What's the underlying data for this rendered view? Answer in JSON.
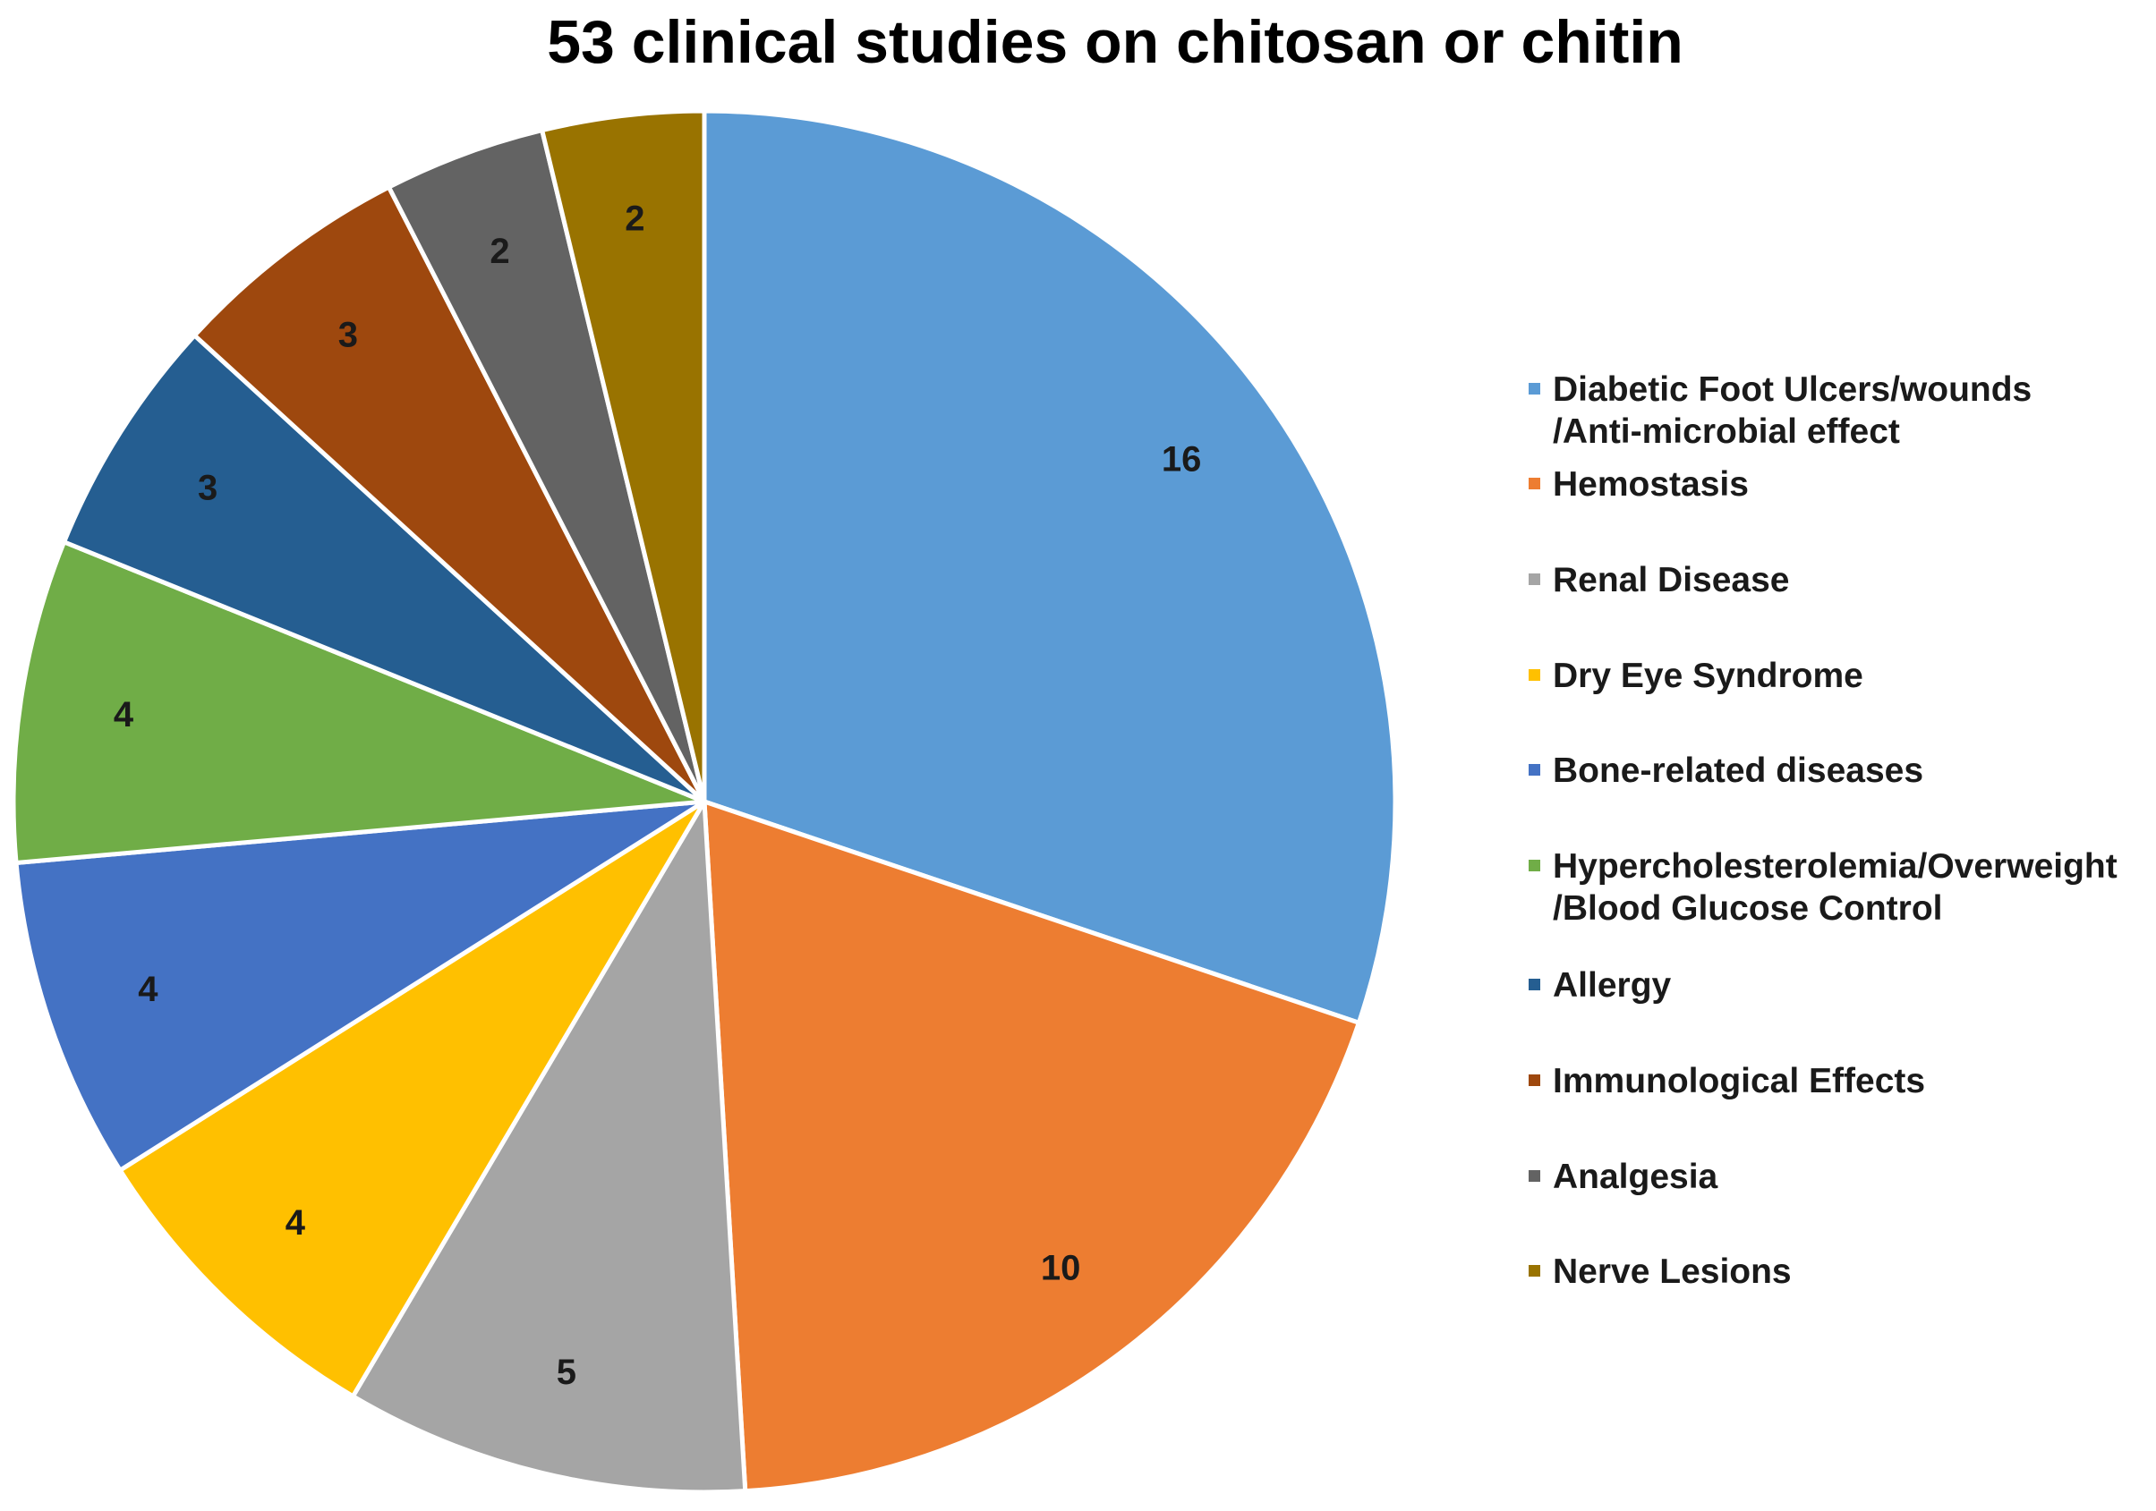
{
  "chart_data": {
    "type": "pie",
    "title": "53 clinical studies on chitosan or chitin",
    "slices": [
      {
        "label": "Diabetic Foot Ulcers/wounds\n/Anti-microbial effect",
        "value": 16,
        "color": "#5B9BD5"
      },
      {
        "label": "Hemostasis",
        "value": 10,
        "color": "#ED7D31"
      },
      {
        "label": " Renal Disease",
        "value": 5,
        "color": "#A5A5A5"
      },
      {
        "label": "Dry Eye Syndrome",
        "value": 4,
        "color": "#FFC000"
      },
      {
        "label": "Bone-related diseases",
        "value": 4,
        "color": "#4472C4"
      },
      {
        "label": "Hypercholesterolemia/Overweight\n/Blood Glucose Control",
        "value": 4,
        "color": "#70AD47"
      },
      {
        "label": "Allergy",
        "value": 3,
        "color": "#255E91"
      },
      {
        "label": "Immunological Effects",
        "value": 3,
        "color": "#9E480E"
      },
      {
        "label": "Analgesia",
        "value": 2,
        "color": "#636363"
      },
      {
        "label": "Nerve Lesions",
        "value": 2,
        "color": "#997300"
      }
    ],
    "data_labels": true,
    "legend": "right"
  }
}
